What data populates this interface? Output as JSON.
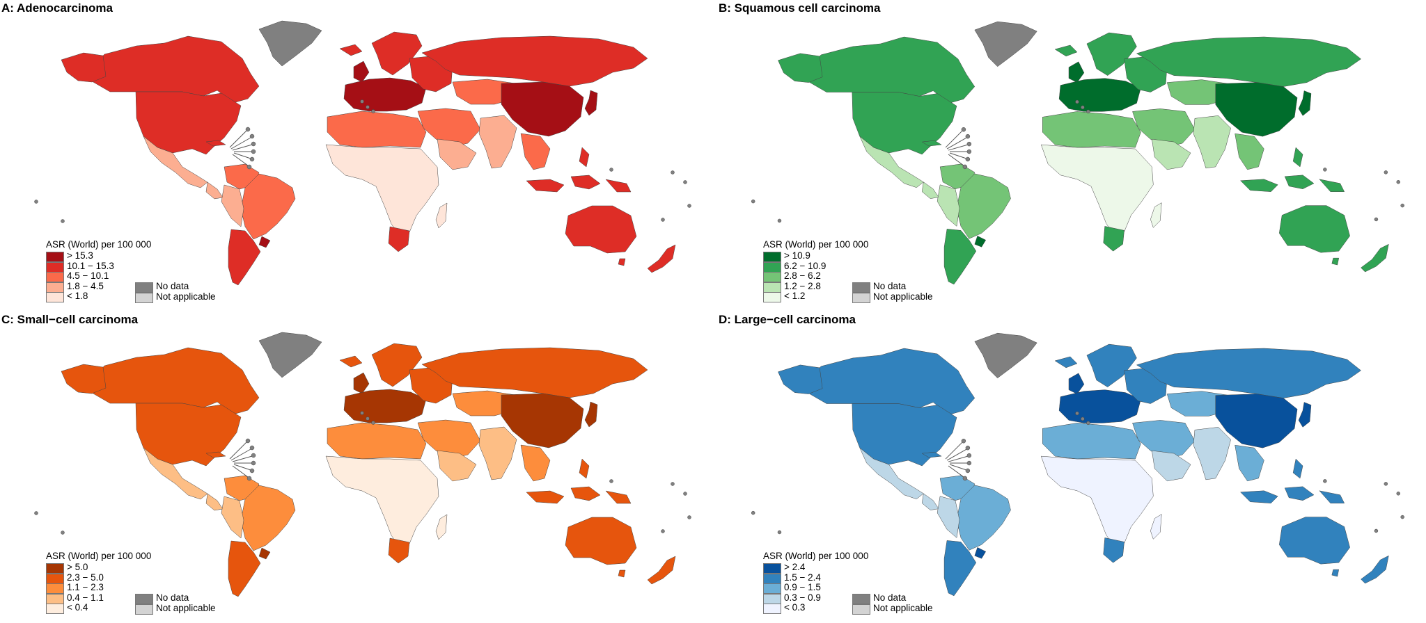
{
  "panels": [
    {
      "title": "A: Adenocarcinoma",
      "legend_title": "ASR (World) per 100 000",
      "classes": [
        {
          "label": "> 15.3",
          "color": "#a50f15"
        },
        {
          "label": "10.1 − 15.3",
          "color": "#de2d26"
        },
        {
          "label": "4.5 − 10.1",
          "color": "#fb6a4a"
        },
        {
          "label": "1.8 − 4.5",
          "color": "#fcae91"
        },
        {
          "label": "< 1.8",
          "color": "#fee5d9"
        }
      ]
    },
    {
      "title": "B: Squamous cell carcinoma",
      "legend_title": "ASR (World) per 100 000",
      "classes": [
        {
          "label": "> 10.9",
          "color": "#006d2c"
        },
        {
          "label": "6.2 − 10.9",
          "color": "#31a354"
        },
        {
          "label": "2.8 − 6.2",
          "color": "#74c476"
        },
        {
          "label": "1.2 − 2.8",
          "color": "#bae4b3"
        },
        {
          "label": "< 1.2",
          "color": "#edf8e9"
        }
      ]
    },
    {
      "title": "C: Small−cell carcinoma",
      "legend_title": "ASR (World) per 100 000",
      "classes": [
        {
          "label": "> 5.0",
          "color": "#a63603"
        },
        {
          "label": "2.3 − 5.0",
          "color": "#e6550d"
        },
        {
          "label": "1.1 − 2.3",
          "color": "#fd8d3c"
        },
        {
          "label": "0.4 − 1.1",
          "color": "#fdbe85"
        },
        {
          "label": "< 0.4",
          "color": "#feedde"
        }
      ]
    },
    {
      "title": "D: Large−cell carcinoma",
      "legend_title": "ASR (World) per 100 000",
      "classes": [
        {
          "label": "> 2.4",
          "color": "#08519c"
        },
        {
          "label": "1.5 − 2.4",
          "color": "#3182bd"
        },
        {
          "label": "0.9 − 1.5",
          "color": "#6baed6"
        },
        {
          "label": "0.3 − 0.9",
          "color": "#bdd7e7"
        },
        {
          "label": "< 0.3",
          "color": "#eff3ff"
        }
      ]
    }
  ],
  "no_data": {
    "label": "No data",
    "color": "#808080"
  },
  "not_applicable": {
    "label": "Not applicable",
    "color": "#d3d3d3"
  }
}
